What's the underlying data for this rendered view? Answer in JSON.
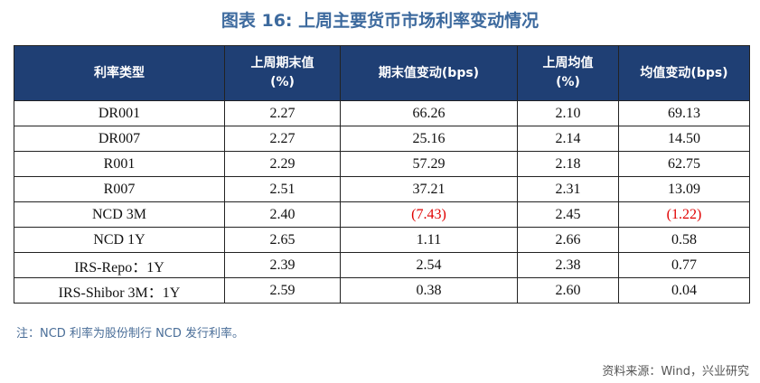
{
  "title": "图表 16: 上周主要货币市场利率变动情况",
  "table": {
    "headers": [
      {
        "line1": "利率类型",
        "line2": ""
      },
      {
        "line1": "上周期末值",
        "line2": "(%)"
      },
      {
        "line1": "期末值变动(bps)",
        "line2": ""
      },
      {
        "line1": "上周均值",
        "line2": "(%)"
      },
      {
        "line1": "均值变动(bps)",
        "line2": ""
      }
    ],
    "rows": [
      {
        "type": "DR001",
        "end": "2.27",
        "end_chg": "66.26",
        "avg": "2.10",
        "avg_chg": "69.13"
      },
      {
        "type": "DR007",
        "end": "2.27",
        "end_chg": "25.16",
        "avg": "2.14",
        "avg_chg": "14.50"
      },
      {
        "type": "R001",
        "end": "2.29",
        "end_chg": "57.29",
        "avg": "2.18",
        "avg_chg": "62.75"
      },
      {
        "type": "R007",
        "end": "2.51",
        "end_chg": "37.21",
        "avg": "2.31",
        "avg_chg": "13.09"
      },
      {
        "type": "NCD 3M",
        "end": "2.40",
        "end_chg": "(7.43)",
        "avg": "2.45",
        "avg_chg": "(1.22)"
      },
      {
        "type": "NCD 1Y",
        "end": "2.65",
        "end_chg": "1.11",
        "avg": "2.66",
        "avg_chg": "0.58"
      },
      {
        "type": "IRS-Repo：1Y",
        "end": "2.39",
        "end_chg": "2.54",
        "avg": "2.38",
        "avg_chg": "0.77"
      },
      {
        "type": "IRS-Shibor 3M：1Y",
        "end": "2.59",
        "end_chg": "0.38",
        "avg": "2.60",
        "avg_chg": "0.04"
      }
    ]
  },
  "note": "注：NCD 利率为股份制行 NCD 发行利率。",
  "source": "资料来源：Wind，兴业研究",
  "colors": {
    "header_bg": "#1f3f74",
    "title": "#3d6a9e",
    "negative": "#e00000"
  }
}
